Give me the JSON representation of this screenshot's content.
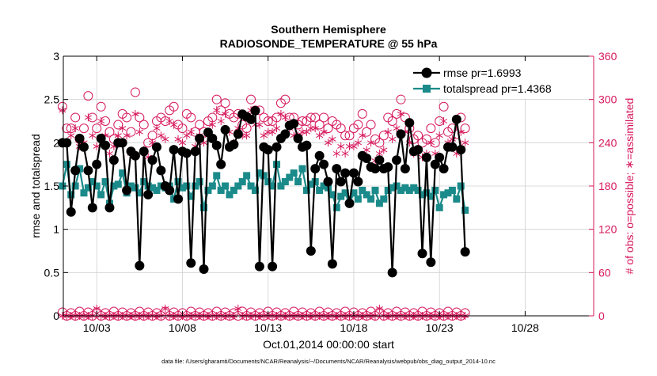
{
  "chart_data": {
    "type": "line",
    "title": "Southern Hemisphere",
    "subtitle": "RADIOSONDE_TEMPERATURE @ 55 hPa",
    "xlabel": "Oct.01,2014 00:00:00 start",
    "ylabel_left": "rmse and totalspread",
    "ylabel_right": "# of obs: o=possible; ∗=assimilated",
    "footer": "data file: /Users/gharamti/Documents/NCAR/Reanalysis/~/Documents/NCAR/Reanalysis/webpub/obs_diag_output_2014-10.nc",
    "x_start": 0.5,
    "x_step": 0.25,
    "xlim": [
      0.55,
      31.5
    ],
    "x_ticks": [
      2.5,
      7.5,
      12.5,
      17.5,
      22.5,
      27.5
    ],
    "x_tick_labels": [
      "10/03",
      "10/08",
      "10/13",
      "10/18",
      "10/23",
      "10/28"
    ],
    "ylim_left": [
      0,
      3
    ],
    "y_ticks_left": [
      0,
      0.5,
      1,
      1.5,
      2,
      2.5,
      3
    ],
    "y_tick_labels_left": [
      "0",
      "0.5",
      "1",
      "1.5",
      "2",
      "2.5",
      "3"
    ],
    "ylim_right": [
      0,
      360
    ],
    "y_ticks_right": [
      0,
      60,
      120,
      180,
      240,
      300,
      360
    ],
    "y_tick_labels_right": [
      "0",
      "60",
      "120",
      "180",
      "240",
      "300",
      "360"
    ],
    "colors": {
      "rmse": "#000000",
      "spread": "#1b8a8a",
      "obs": "#d6185c",
      "axis_right": "#d6185c",
      "grid": "#d0d0d0"
    },
    "legend": {
      "placement": "top-right",
      "entries": [
        "rmse pr=1.6993",
        "totalspread pr=1.4368"
      ]
    },
    "series": [
      {
        "name": "rmse",
        "values": [
          2.0,
          2.0,
          1.2,
          1.68,
          2.05,
          1.95,
          1.68,
          1.25,
          1.75,
          2.05,
          1.97,
          1.25,
          1.8,
          2.0,
          2.0,
          1.45,
          1.9,
          1.85,
          0.58,
          1.9,
          1.4,
          1.8,
          1.95,
          1.68,
          1.5,
          1.45,
          1.92,
          1.35,
          1.9,
          1.88,
          0.61,
          1.9,
          2.05,
          0.54,
          2.12,
          2.05,
          1.97,
          1.75,
          2.15,
          1.95,
          1.98,
          2.1,
          2.33,
          2.3,
          2.27,
          2.37,
          0.57,
          1.95,
          1.92,
          0.57,
          1.95,
          2.05,
          2.1,
          2.2,
          2.22,
          2.05,
          1.95,
          1.97,
          0.75,
          1.7,
          1.85,
          1.75,
          1.55,
          0.6,
          1.7,
          1.55,
          1.65,
          1.3,
          1.65,
          1.55,
          1.85,
          1.82,
          1.72,
          1.7,
          1.8,
          1.7,
          1.72,
          0.5,
          1.8,
          2.1,
          1.7,
          2.23,
          1.9,
          1.92,
          0.72,
          1.83,
          0.62,
          1.75,
          1.83,
          1.7,
          1.95,
          1.95,
          2.27,
          1.92,
          0.74
        ]
      },
      {
        "name": "totalspread",
        "values": [
          1.5,
          1.75,
          1.4,
          1.5,
          1.7,
          1.42,
          1.48,
          1.55,
          1.5,
          1.4,
          1.55,
          1.3,
          1.5,
          1.52,
          1.65,
          1.42,
          1.5,
          1.48,
          1.42,
          1.55,
          1.5,
          1.48,
          1.45,
          1.5,
          1.48,
          1.5,
          1.35,
          1.55,
          1.48,
          1.5,
          1.38,
          1.5,
          1.55,
          1.25,
          1.45,
          1.5,
          1.62,
          1.45,
          1.5,
          1.4,
          1.45,
          1.5,
          1.55,
          1.62,
          1.5,
          1.45,
          1.65,
          1.62,
          1.55,
          1.5,
          1.75,
          1.5,
          1.55,
          1.6,
          1.65,
          1.55,
          1.7,
          1.45,
          1.52,
          1.55,
          1.45,
          1.5,
          1.48,
          1.4,
          1.25,
          1.38,
          1.42,
          1.3,
          1.42,
          1.35,
          1.45,
          1.4,
          1.35,
          1.45,
          1.3,
          1.35,
          1.45,
          1.48,
          1.5,
          1.45,
          1.48,
          1.45,
          1.48,
          1.45,
          1.4,
          1.42,
          1.38,
          1.45,
          1.25,
          1.4,
          1.42,
          1.45,
          1.35,
          1.5,
          1.22
        ]
      },
      {
        "name": "possible",
        "values": [
          290,
          260,
          260,
          275,
          245,
          260,
          305,
          275,
          260,
          290,
          270,
          255,
          245,
          265,
          280,
          275,
          255,
          310,
          275,
          265,
          240,
          250,
          270,
          275,
          270,
          285,
          290,
          265,
          260,
          280,
          275,
          255,
          265,
          255,
          270,
          275,
          300,
          285,
          295,
          280,
          275,
          280,
          265,
          260,
          300,
          285,
          285,
          275,
          270,
          270,
          275,
          295,
          300,
          275,
          275,
          265,
          270,
          270,
          275,
          275,
          265,
          275,
          260,
          270,
          265,
          260,
          250,
          250,
          260,
          265,
          280,
          255,
          265,
          245,
          240,
          250,
          275,
          270,
          280,
          300,
          275,
          260,
          245,
          250,
          240,
          245,
          260,
          240,
          270,
          290,
          255,
          260,
          240,
          275,
          260
        ]
      },
      {
        "name": "assimilated",
        "values": [
          285,
          240,
          250,
          260,
          235,
          240,
          275,
          250,
          235,
          270,
          250,
          225,
          235,
          250,
          260,
          250,
          225,
          280,
          255,
          230,
          220,
          240,
          260,
          250,
          245,
          270,
          265,
          245,
          240,
          250,
          255,
          235,
          250,
          240,
          250,
          265,
          285,
          270,
          280,
          255,
          240,
          260,
          250,
          250,
          285,
          265,
          265,
          250,
          255,
          255,
          260,
          280,
          275,
          260,
          250,
          250,
          255,
          255,
          260,
          260,
          250,
          255,
          240,
          245,
          225,
          235,
          225,
          235,
          235,
          240,
          250,
          230,
          240,
          215,
          225,
          230,
          255,
          245,
          260,
          280,
          255,
          240,
          225,
          230,
          220,
          225,
          240,
          225,
          250,
          270,
          240,
          245,
          225,
          255,
          240
        ]
      },
      {
        "name": "possible_bottom",
        "values": [
          5,
          0,
          4,
          0,
          6,
          0,
          5,
          0,
          5,
          0,
          4,
          0,
          6,
          0,
          5,
          0,
          4,
          0,
          6,
          0,
          5,
          0,
          4,
          0,
          6,
          0,
          5,
          0,
          4,
          0,
          6,
          0,
          5,
          0,
          4,
          0,
          6,
          0,
          5,
          0,
          4,
          0,
          6,
          0,
          5,
          0,
          4,
          0,
          6,
          0,
          5,
          0,
          4,
          0,
          6,
          0,
          5,
          0,
          4,
          0,
          6,
          0,
          5,
          0,
          4,
          0,
          6,
          0,
          5,
          0,
          4,
          0,
          6,
          0,
          5,
          0,
          4,
          0,
          6,
          0,
          5,
          0,
          4,
          0,
          6,
          0,
          5,
          0,
          4,
          0,
          6,
          0,
          5,
          0,
          4
        ]
      },
      {
        "name": "assimilated_bottom",
        "values": [
          0,
          0,
          0,
          0,
          0,
          0,
          0,
          0,
          10,
          0,
          0,
          0,
          0,
          0,
          0,
          0,
          0,
          0,
          0,
          0,
          0,
          0,
          0,
          0,
          10,
          0,
          0,
          0,
          0,
          0,
          0,
          0,
          0,
          0,
          0,
          0,
          0,
          0,
          0,
          0,
          0,
          10,
          0,
          0,
          0,
          0,
          0,
          0,
          0,
          0,
          0,
          0,
          0,
          0,
          0,
          0,
          0,
          0,
          0,
          0,
          0,
          0,
          0,
          0,
          0,
          0,
          0,
          0,
          0,
          0,
          0,
          0,
          0,
          0,
          10,
          0,
          0,
          0,
          0,
          0,
          0,
          0,
          0,
          0,
          0,
          0,
          0,
          0,
          0,
          0,
          0,
          0,
          0,
          0,
          0
        ]
      }
    ]
  }
}
